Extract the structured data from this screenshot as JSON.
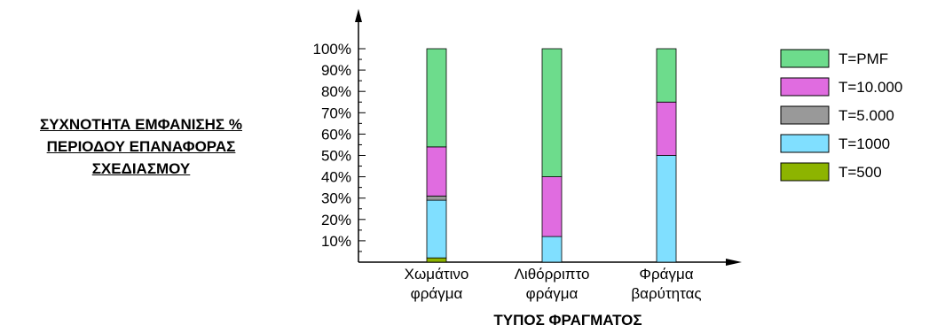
{
  "chart_data": {
    "type": "bar",
    "stacked": true,
    "categories": [
      [
        "Χωμάτινο",
        "φράγμα"
      ],
      [
        "Λιθόρριπτο",
        "φράγμα"
      ],
      [
        "Φράγμα",
        "βαρύτητας"
      ]
    ],
    "series": [
      {
        "name": "T=500",
        "color": "#8db400",
        "values": [
          2,
          0,
          0
        ]
      },
      {
        "name": "T=1000",
        "color": "#80dfff",
        "values": [
          27,
          12,
          50
        ]
      },
      {
        "name": "T=5.000",
        "color": "#999999",
        "values": [
          2,
          0,
          0
        ]
      },
      {
        "name": "T=10.000",
        "color": "#e06ce0",
        "values": [
          23,
          28,
          25
        ]
      },
      {
        "name": "T=PMF",
        "color": "#6ddc8c",
        "values": [
          46,
          60,
          25
        ]
      }
    ],
    "legend_order": [
      "T=PMF",
      "T=10.000",
      "T=5.000",
      "T=1000",
      "T=500"
    ],
    "y_ticks": [
      "10%",
      "20%",
      "30%",
      "40%",
      "50%",
      "60%",
      "70%",
      "80%",
      "90%",
      "100%"
    ],
    "ylim": [
      0,
      100
    ],
    "ylabel": [
      "ΣΥΧΝΟΤΗΤΑ ΕΜΦΑΝΙΣΗΣ %",
      "ΠΕΡΙΟΔΟΥ ΕΠΑΝΑΦΟΡΑΣ",
      "ΣΧΕΔΙΑΣΜΟΥ"
    ],
    "xlabel": "ΤΥΠΟΣ ΦΡΑΓΜΑΤΟΣ",
    "legend_position": "right",
    "grid": false
  }
}
